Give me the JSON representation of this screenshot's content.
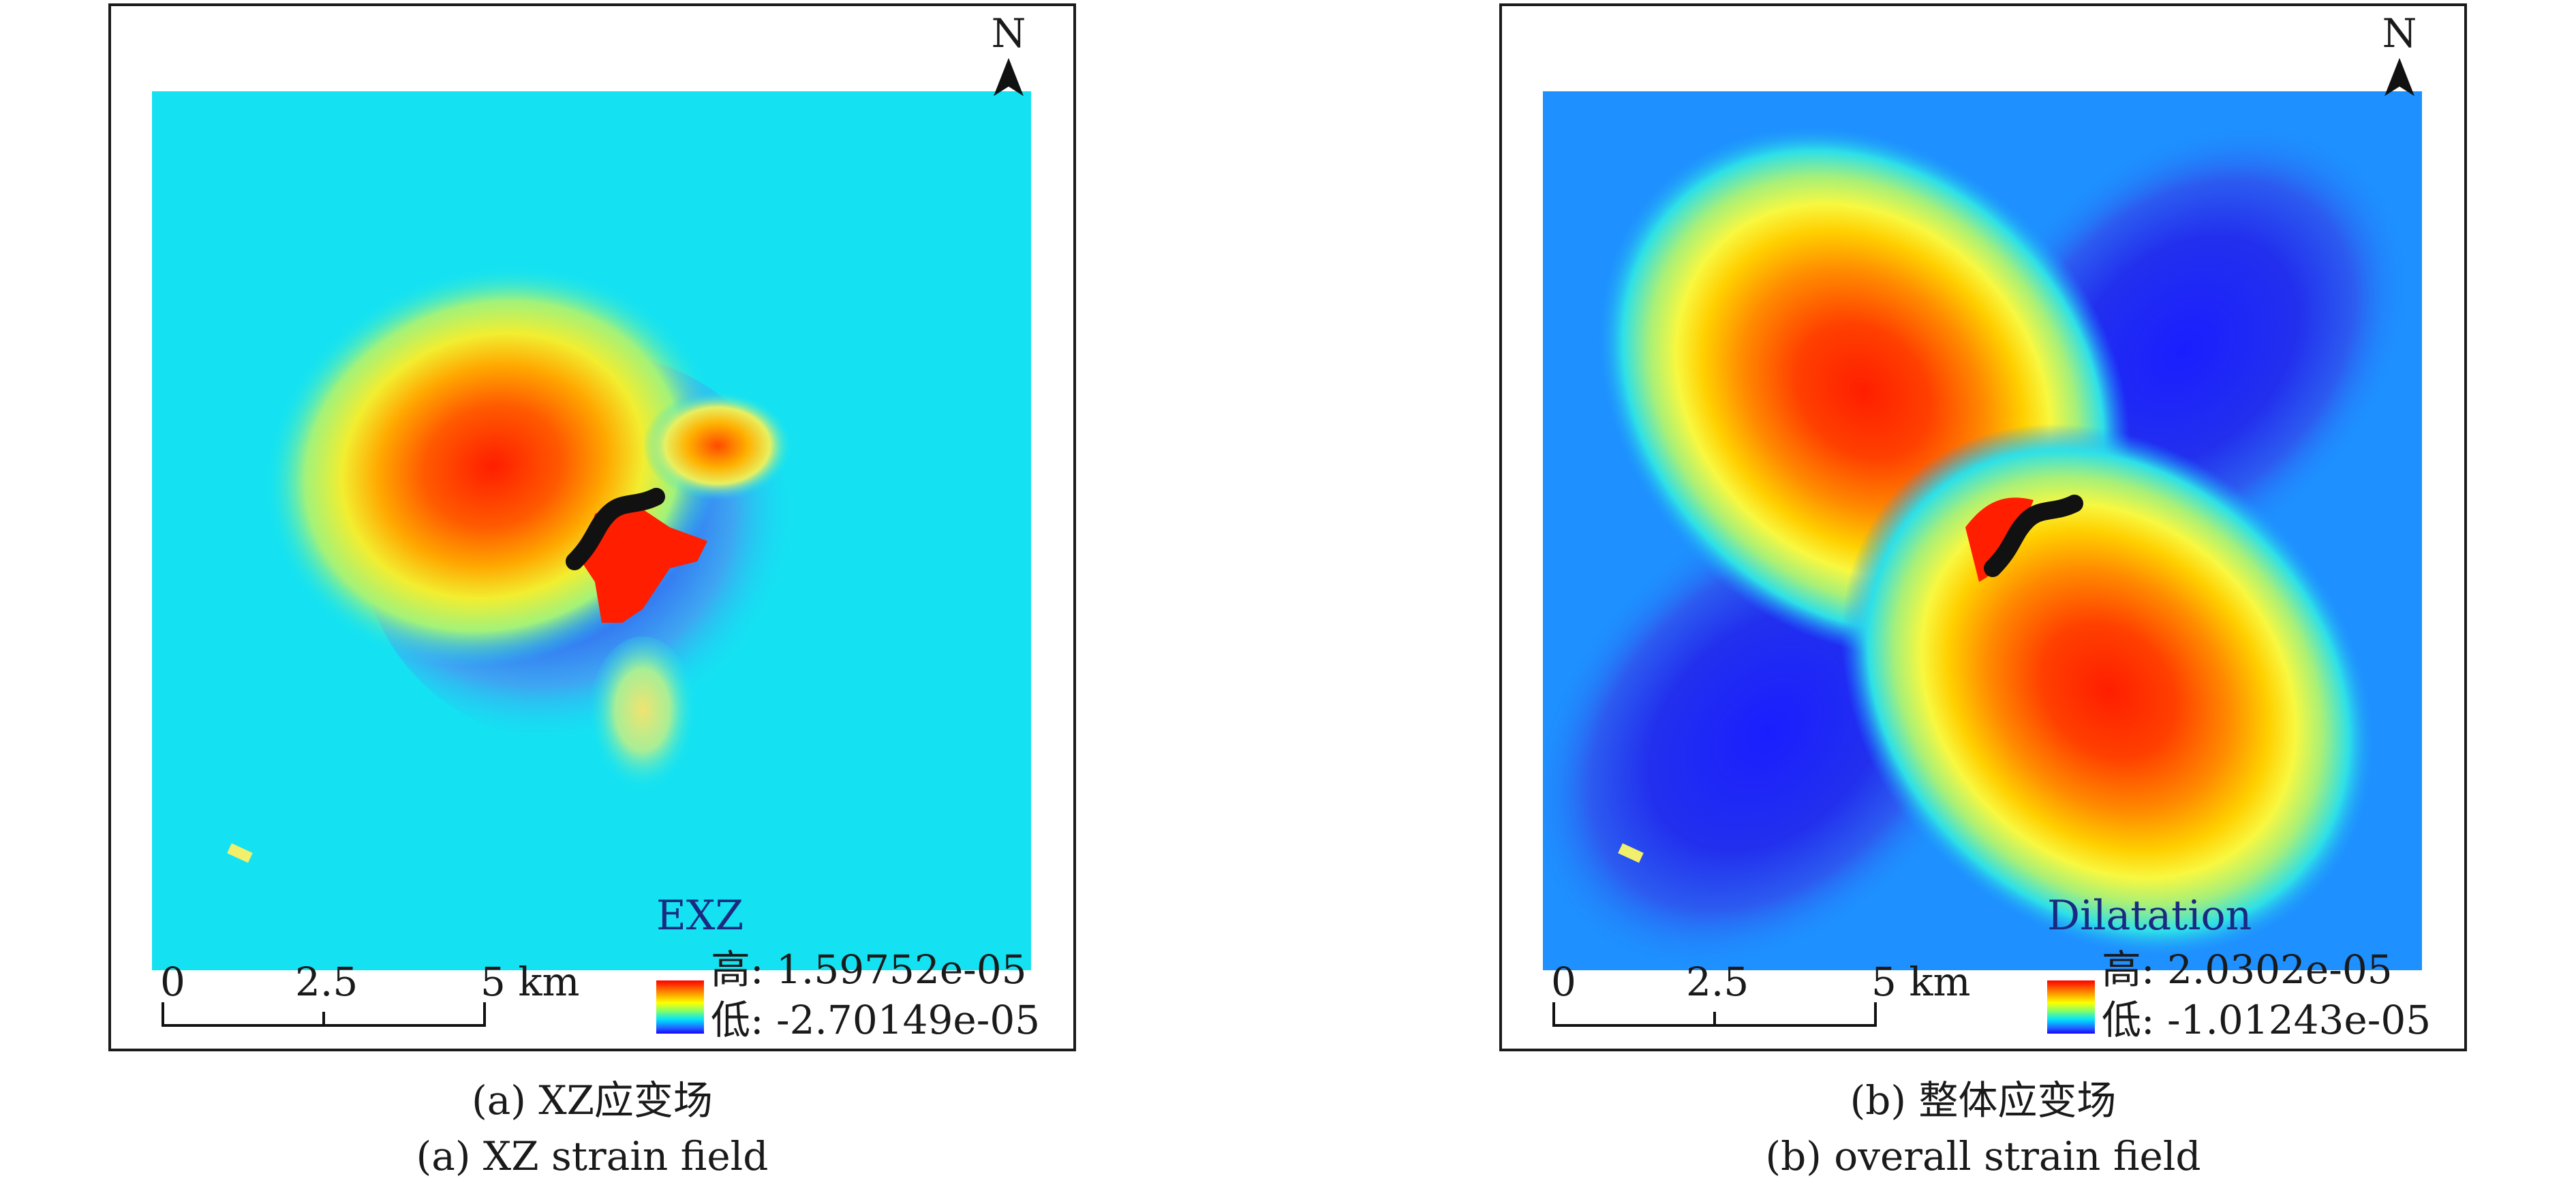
{
  "panels": [
    {
      "north_label": "N",
      "scale": {
        "ticks": [
          "0",
          "2.5",
          "5 km"
        ]
      },
      "legend": {
        "title": "EXZ",
        "high": "高: 1.59752e-05",
        "low": "低: -2.70149e-05"
      },
      "caption_zh": "(a) XZ应变场",
      "caption_en": "(a) XZ strain field"
    },
    {
      "north_label": "N",
      "scale": {
        "ticks": [
          "0",
          "2.5",
          "5 km"
        ]
      },
      "legend": {
        "title": "Dilatation",
        "high": "高: 2.0302e-05",
        "low": "低: -1.01243e-05"
      },
      "caption_zh": "(b) 整体应变场",
      "caption_en": "(b) overall strain field"
    }
  ],
  "colors": {
    "background_a": "#14e2f2",
    "background_b": "#1e90ff",
    "max": "#ff1e00",
    "min": "#2230ee",
    "fault": "#111111",
    "marker": "#f2f06a"
  }
}
